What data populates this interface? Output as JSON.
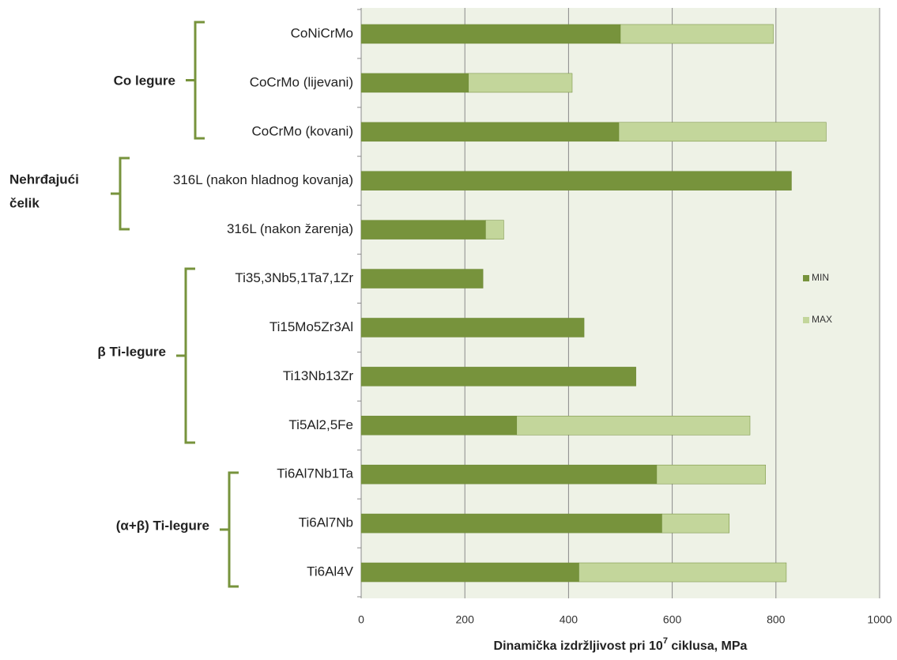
{
  "chart_data": {
    "type": "stacked_barh",
    "categories": [
      "CoNiCrMo",
      "CoCrMo (lijevani)",
      "CoCrMo (kovani)",
      "316L (nakon   hladnog kovanja)",
      "316L (nakon žarenja)",
      "Ti35,3Nb5,1Ta7,1Zr",
      "Ti15Mo5Zr3Al",
      "Ti13Nb13Zr",
      "Ti5Al2,5Fe",
      "Ti6Al7Nb1Ta",
      "Ti6Al7Nb",
      "Ti6Al4V"
    ],
    "series": [
      {
        "name": "MIN",
        "color": "#77933c",
        "values": [
          500,
          207,
          497,
          830,
          240,
          235,
          430,
          530,
          300,
          570,
          580,
          420
        ]
      },
      {
        "name": "MAX",
        "color": "#c3d69b",
        "values": [
          295,
          200,
          400,
          0,
          35,
          0,
          0,
          0,
          450,
          210,
          130,
          400
        ]
      }
    ],
    "groups": [
      {
        "label": [
          "Co legure"
        ]
      },
      {
        "label": [
          "Nehrđajući",
          "čelik"
        ]
      },
      {
        "label": [
          "β Ti-legure"
        ]
      },
      {
        "label": [
          "(α+β) Ti-legure"
        ]
      }
    ],
    "xlabel": [
      "Dinamička izdržljivost pri 10",
      "7",
      " ciklusa, MPa"
    ],
    "xlim": [
      0,
      1000
    ],
    "xticks": [
      0,
      200,
      400,
      600,
      800,
      1000
    ],
    "grid": true,
    "legend": "right"
  }
}
